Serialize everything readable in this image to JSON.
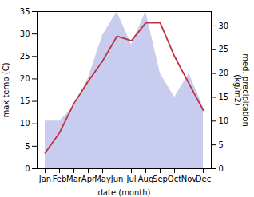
{
  "chart_data": {
    "type": "line",
    "categories": [
      "Jan",
      "Feb",
      "Mar",
      "Apr",
      "May",
      "Jun",
      "Jul",
      "Aug",
      "Sep",
      "Oct",
      "Nov",
      "Dec"
    ],
    "series": [
      {
        "type": "area",
        "axis": "y2",
        "color": "#c8ccee",
        "values": [
          10.0,
          10.0,
          13.0,
          19.0,
          28.0,
          33.0,
          26.0,
          33.0,
          20.0,
          15.0,
          20.0,
          13.0
        ]
      },
      {
        "type": "line",
        "color": "#c03040",
        "values": [
          3.5,
          8.0,
          14.5,
          19.5,
          24.0,
          29.5,
          28.5,
          32.5,
          32.5,
          25.0,
          19.0,
          13.0
        ]
      }
    ],
    "xlabel": "date (month)",
    "ylabel": "max temp (C)",
    "y2label": "med. precipitation\n(kg/m2)",
    "ylim": [
      0,
      35
    ],
    "yticks": [
      0,
      5,
      10,
      15,
      20,
      25,
      30,
      35
    ],
    "y2lim": [
      0,
      33
    ],
    "y2ticks": [
      0,
      5,
      10,
      15,
      20,
      25,
      30
    ],
    "grid": false
  }
}
